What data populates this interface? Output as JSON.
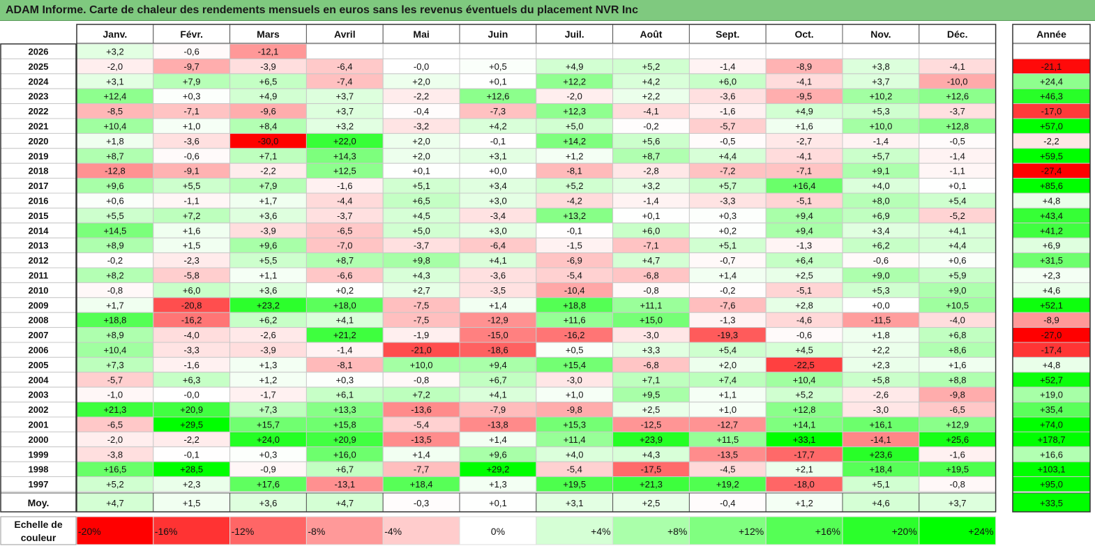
{
  "title": "ADAM Informe. Carte de chaleur des rendements mensuels en euros sans les revenus éventuels du placement NVR Inc",
  "chart_data": {
    "type": "heatmap",
    "months": [
      "Janv.",
      "Févr.",
      "Mars",
      "Avril",
      "Mai",
      "Juin",
      "Juil.",
      "Août",
      "Sept.",
      "Oct.",
      "Nov.",
      "Déc."
    ],
    "annual_header": "Année",
    "rows": [
      {
        "year": "2026",
        "values": [
          "+3,2",
          "-0,6",
          "-12,1",
          "",
          "",
          "",
          "",
          "",
          "",
          "",
          "",
          ""
        ],
        "annual": ""
      },
      {
        "year": "2025",
        "values": [
          "-2,0",
          "-9,7",
          "-3,9",
          "-6,4",
          "-0,0",
          "+0,5",
          "+4,9",
          "+5,2",
          "-1,4",
          "-8,9",
          "+3,8",
          "-4,1"
        ],
        "annual": "-21,1"
      },
      {
        "year": "2024",
        "values": [
          "+3,1",
          "+7,9",
          "+6,5",
          "-7,4",
          "+2,0",
          "+0,1",
          "+12,2",
          "+4,2",
          "+6,0",
          "-4,1",
          "+3,7",
          "-10,0"
        ],
        "annual": "+24,4"
      },
      {
        "year": "2023",
        "values": [
          "+12,4",
          "+0,3",
          "+4,9",
          "+3,7",
          "-2,2",
          "+12,6",
          "-2,0",
          "+2,2",
          "-3,6",
          "-9,5",
          "+10,2",
          "+12,6"
        ],
        "annual": "+46,3"
      },
      {
        "year": "2022",
        "values": [
          "-8,5",
          "-7,1",
          "-9,6",
          "+3,7",
          "-0,4",
          "-7,3",
          "+12,3",
          "-4,1",
          "-1,6",
          "+4,9",
          "+5,3",
          "-3,7"
        ],
        "annual": "-17,0"
      },
      {
        "year": "2021",
        "values": [
          "+10,4",
          "+1,0",
          "+8,4",
          "+3,2",
          "-3,2",
          "+4,2",
          "+5,0",
          "-0,2",
          "-5,7",
          "+1,6",
          "+10,0",
          "+12,8"
        ],
        "annual": "+57,0"
      },
      {
        "year": "2020",
        "values": [
          "+1,8",
          "-3,6",
          "-30,0",
          "+22,0",
          "+2,0",
          "-0,1",
          "+14,2",
          "+5,6",
          "-0,5",
          "-2,7",
          "-1,4",
          "-0,5"
        ],
        "annual": "-2,2"
      },
      {
        "year": "2019",
        "values": [
          "+8,7",
          "-0,6",
          "+7,1",
          "+14,3",
          "+2,0",
          "+3,1",
          "+1,2",
          "+8,7",
          "+4,4",
          "-4,1",
          "+5,7",
          "-1,4"
        ],
        "annual": "+59,5"
      },
      {
        "year": "2018",
        "values": [
          "-12,8",
          "-9,1",
          "-2,2",
          "+12,5",
          "+0,1",
          "+0,0",
          "-8,1",
          "-2,8",
          "-7,2",
          "-7,1",
          "+9,1",
          "-1,1"
        ],
        "annual": "-27,4"
      },
      {
        "year": "2017",
        "values": [
          "+9,6",
          "+5,5",
          "+7,9",
          "-1,6",
          "+5,1",
          "+3,4",
          "+5,2",
          "+3,2",
          "+5,7",
          "+16,4",
          "+4,0",
          "+0,1"
        ],
        "annual": "+85,6"
      },
      {
        "year": "2016",
        "values": [
          "+0,6",
          "-1,1",
          "+1,7",
          "-4,4",
          "+6,5",
          "+3,0",
          "-4,2",
          "-1,4",
          "-3,3",
          "-5,1",
          "+8,0",
          "+5,4"
        ],
        "annual": "+4,8"
      },
      {
        "year": "2015",
        "values": [
          "+5,5",
          "+7,2",
          "+3,6",
          "-3,7",
          "+4,5",
          "-3,4",
          "+13,2",
          "+0,1",
          "+0,3",
          "+9,4",
          "+6,9",
          "-5,2"
        ],
        "annual": "+43,4"
      },
      {
        "year": "2014",
        "values": [
          "+14,5",
          "+1,6",
          "-3,9",
          "-6,5",
          "+5,0",
          "+3,0",
          "-0,1",
          "+6,0",
          "+0,2",
          "+9,4",
          "+3,4",
          "+4,1"
        ],
        "annual": "+41,2"
      },
      {
        "year": "2013",
        "values": [
          "+8,9",
          "+1,5",
          "+9,6",
          "-7,0",
          "-3,7",
          "-6,4",
          "-1,5",
          "-7,1",
          "+5,1",
          "-1,3",
          "+6,2",
          "+4,4"
        ],
        "annual": "+6,9"
      },
      {
        "year": "2012",
        "values": [
          "-0,2",
          "-2,3",
          "+5,5",
          "+8,7",
          "+9,8",
          "+4,1",
          "-6,9",
          "+4,7",
          "-0,7",
          "+6,4",
          "-0,6",
          "+0,6"
        ],
        "annual": "+31,5"
      },
      {
        "year": "2011",
        "values": [
          "+8,2",
          "-5,8",
          "+1,1",
          "-6,6",
          "+4,3",
          "-3,6",
          "-5,4",
          "-6,8",
          "+1,4",
          "+2,5",
          "+9,0",
          "+5,9"
        ],
        "annual": "+2,3"
      },
      {
        "year": "2010",
        "values": [
          "-0,8",
          "+6,0",
          "+3,6",
          "+0,2",
          "+2,7",
          "-3,5",
          "-10,4",
          "-0,8",
          "-0,2",
          "-5,1",
          "+5,3",
          "+9,0"
        ],
        "annual": "+4,6"
      },
      {
        "year": "2009",
        "values": [
          "+1,7",
          "-20,8",
          "+23,2",
          "+18,0",
          "-7,5",
          "+1,4",
          "+18,8",
          "+11,1",
          "-7,6",
          "+2,8",
          "+0,0",
          "+10,5"
        ],
        "annual": "+52,1"
      },
      {
        "year": "2008",
        "values": [
          "+18,8",
          "-16,2",
          "+6,2",
          "+4,1",
          "-7,5",
          "-12,9",
          "+11,6",
          "+15,0",
          "-1,3",
          "-4,6",
          "-11,5",
          "-4,0"
        ],
        "annual": "-8,9"
      },
      {
        "year": "2007",
        "values": [
          "+8,9",
          "-4,0",
          "-2,6",
          "+21,2",
          "-1,9",
          "-15,0",
          "-16,2",
          "-3,0",
          "-19,3",
          "-0,6",
          "+1,8",
          "+6,8"
        ],
        "annual": "-27,0"
      },
      {
        "year": "2006",
        "values": [
          "+10,4",
          "-3,3",
          "-3,9",
          "-1,4",
          "-21,0",
          "-18,6",
          "+0,5",
          "+3,3",
          "+5,4",
          "+4,5",
          "+2,2",
          "+8,6"
        ],
        "annual": "-17,4"
      },
      {
        "year": "2005",
        "values": [
          "+7,3",
          "-1,6",
          "+1,3",
          "-8,1",
          "+10,0",
          "+9,4",
          "+15,4",
          "-6,8",
          "+2,0",
          "-22,5",
          "+2,3",
          "+1,6"
        ],
        "annual": "+4,8"
      },
      {
        "year": "2004",
        "values": [
          "-5,7",
          "+6,3",
          "+1,2",
          "+0,3",
          "-0,8",
          "+6,7",
          "-3,0",
          "+7,1",
          "+7,4",
          "+10,4",
          "+5,8",
          "+8,8"
        ],
        "annual": "+52,7"
      },
      {
        "year": "2003",
        "values": [
          "-1,0",
          "-0,0",
          "-1,7",
          "+6,1",
          "+7,2",
          "+4,1",
          "+1,0",
          "+9,5",
          "+1,1",
          "+5,2",
          "-2,6",
          "-9,8"
        ],
        "annual": "+19,0"
      },
      {
        "year": "2002",
        "values": [
          "+21,3",
          "+20,9",
          "+7,3",
          "+13,3",
          "-13,6",
          "-7,9",
          "-9,8",
          "+2,5",
          "+1,0",
          "+12,8",
          "-3,0",
          "-6,5"
        ],
        "annual": "+35,4"
      },
      {
        "year": "2001",
        "values": [
          "-6,5",
          "+29,5",
          "+15,7",
          "+15,8",
          "-5,4",
          "-13,8",
          "+15,3",
          "-12,5",
          "-12,7",
          "+14,1",
          "+16,1",
          "+12,9"
        ],
        "annual": "+74,0"
      },
      {
        "year": "2000",
        "values": [
          "-2,0",
          "-2,2",
          "+24,0",
          "+20,9",
          "-13,5",
          "+1,4",
          "+11,4",
          "+23,9",
          "+11,5",
          "+33,1",
          "-14,1",
          "+25,6"
        ],
        "annual": "+178,7"
      },
      {
        "year": "1999",
        "values": [
          "-3,8",
          "-0,1",
          "+0,3",
          "+16,0",
          "+1,4",
          "+9,6",
          "+4,0",
          "+4,3",
          "-13,5",
          "-17,7",
          "+23,6",
          "-1,6"
        ],
        "annual": "+16,6"
      },
      {
        "year": "1998",
        "values": [
          "+16,5",
          "+28,5",
          "-0,9",
          "+6,7",
          "-7,7",
          "+29,2",
          "-5,4",
          "-17,5",
          "-4,5",
          "+2,1",
          "+18,4",
          "+19,5"
        ],
        "annual": "+103,1"
      },
      {
        "year": "1997",
        "values": [
          "+5,2",
          "+2,3",
          "+17,6",
          "-13,1",
          "+18,4",
          "+1,3",
          "+19,5",
          "+21,3",
          "+19,2",
          "-18,0",
          "+5,1",
          "-0,8"
        ],
        "annual": "+95,0"
      }
    ],
    "average": {
      "label": "Moy.",
      "values": [
        "+4,7",
        "+1,5",
        "+3,6",
        "+4,7",
        "-0,3",
        "+0,1",
        "+3,1",
        "+2,5",
        "-0,4",
        "+1,2",
        "+4,6",
        "+3,7"
      ],
      "annual": "+33,5"
    },
    "scale": {
      "label_line1": "Echelle de",
      "label_line2": "couleur",
      "steps": [
        "-20%",
        "-16%",
        "-12%",
        "-8%",
        "-4%",
        "0%",
        "+4%",
        "+8%",
        "+12%",
        "+16%",
        "+20%",
        "+24%"
      ],
      "step_values": [
        -20,
        -16,
        -12,
        -8,
        -4,
        0,
        4,
        8,
        12,
        16,
        20,
        24
      ]
    },
    "colors": {
      "negative_max": "#ff0000",
      "neutral": "#ffffff",
      "positive_max": "#00ff00",
      "title_bg": "#7fc97f"
    }
  }
}
